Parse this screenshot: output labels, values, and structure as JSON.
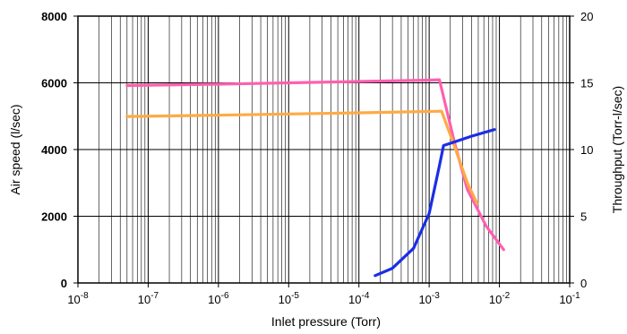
{
  "chart_data": {
    "type": "line",
    "title": "",
    "xlabel": "Inlet pressure (Torr)",
    "ylabel": "Air speed (l/sec)",
    "y2label": "Throughput (Torr-l/sec)",
    "x_scale": "log",
    "xlim": [
      1e-08,
      0.1
    ],
    "ylim": [
      0,
      8000
    ],
    "y2lim": [
      0,
      20
    ],
    "grid": true,
    "legend": "none",
    "x_tick_labels": [
      {
        "base": "10",
        "exp": "-8"
      },
      {
        "base": "10",
        "exp": "-7"
      },
      {
        "base": "10",
        "exp": "-6"
      },
      {
        "base": "10",
        "exp": "-5"
      },
      {
        "base": "10",
        "exp": "-4"
      },
      {
        "base": "10",
        "exp": "-3"
      },
      {
        "base": "10",
        "exp": "-2"
      },
      {
        "base": "10",
        "exp": "-1"
      }
    ],
    "y_tick_labels": [
      "0",
      "2000",
      "4000",
      "6000",
      "8000"
    ],
    "y2_tick_labels": [
      "0",
      "5",
      "10",
      "15",
      "20"
    ],
    "series": [
      {
        "color": "#ff5fb0",
        "axis": "left",
        "points": [
          {
            "x": 5e-08,
            "y": 5920
          },
          {
            "x": 1e-07,
            "y": 5930
          },
          {
            "x": 1e-06,
            "y": 5960
          },
          {
            "x": 1e-05,
            "y": 6000
          },
          {
            "x": 0.0001,
            "y": 6040
          },
          {
            "x": 0.001,
            "y": 6080
          },
          {
            "x": 0.0014,
            "y": 6090
          },
          {
            "x": 0.0023,
            "y": 4200
          },
          {
            "x": 0.0035,
            "y": 2800
          },
          {
            "x": 0.0065,
            "y": 1700
          },
          {
            "x": 0.0115,
            "y": 1000
          }
        ]
      },
      {
        "color": "#ffaa44",
        "axis": "left",
        "points": [
          {
            "x": 5e-08,
            "y": 4990
          },
          {
            "x": 1e-06,
            "y": 5030
          },
          {
            "x": 0.0001,
            "y": 5100
          },
          {
            "x": 0.0015,
            "y": 5150
          },
          {
            "x": 0.0022,
            "y": 4200
          },
          {
            "x": 0.0035,
            "y": 3000
          },
          {
            "x": 0.0048,
            "y": 2380
          }
        ]
      },
      {
        "color": "#1a2ee6",
        "axis": "right",
        "points": [
          {
            "x": 0.00017,
            "y": 0.55
          },
          {
            "x": 0.0003,
            "y": 1.1
          },
          {
            "x": 0.0006,
            "y": 2.6
          },
          {
            "x": 0.001,
            "y": 5.2
          },
          {
            "x": 0.0014,
            "y": 8.8
          },
          {
            "x": 0.0016,
            "y": 10.3
          },
          {
            "x": 0.0021,
            "y": 10.5
          },
          {
            "x": 0.004,
            "y": 11.0
          },
          {
            "x": 0.0085,
            "y": 11.5
          }
        ]
      }
    ]
  }
}
